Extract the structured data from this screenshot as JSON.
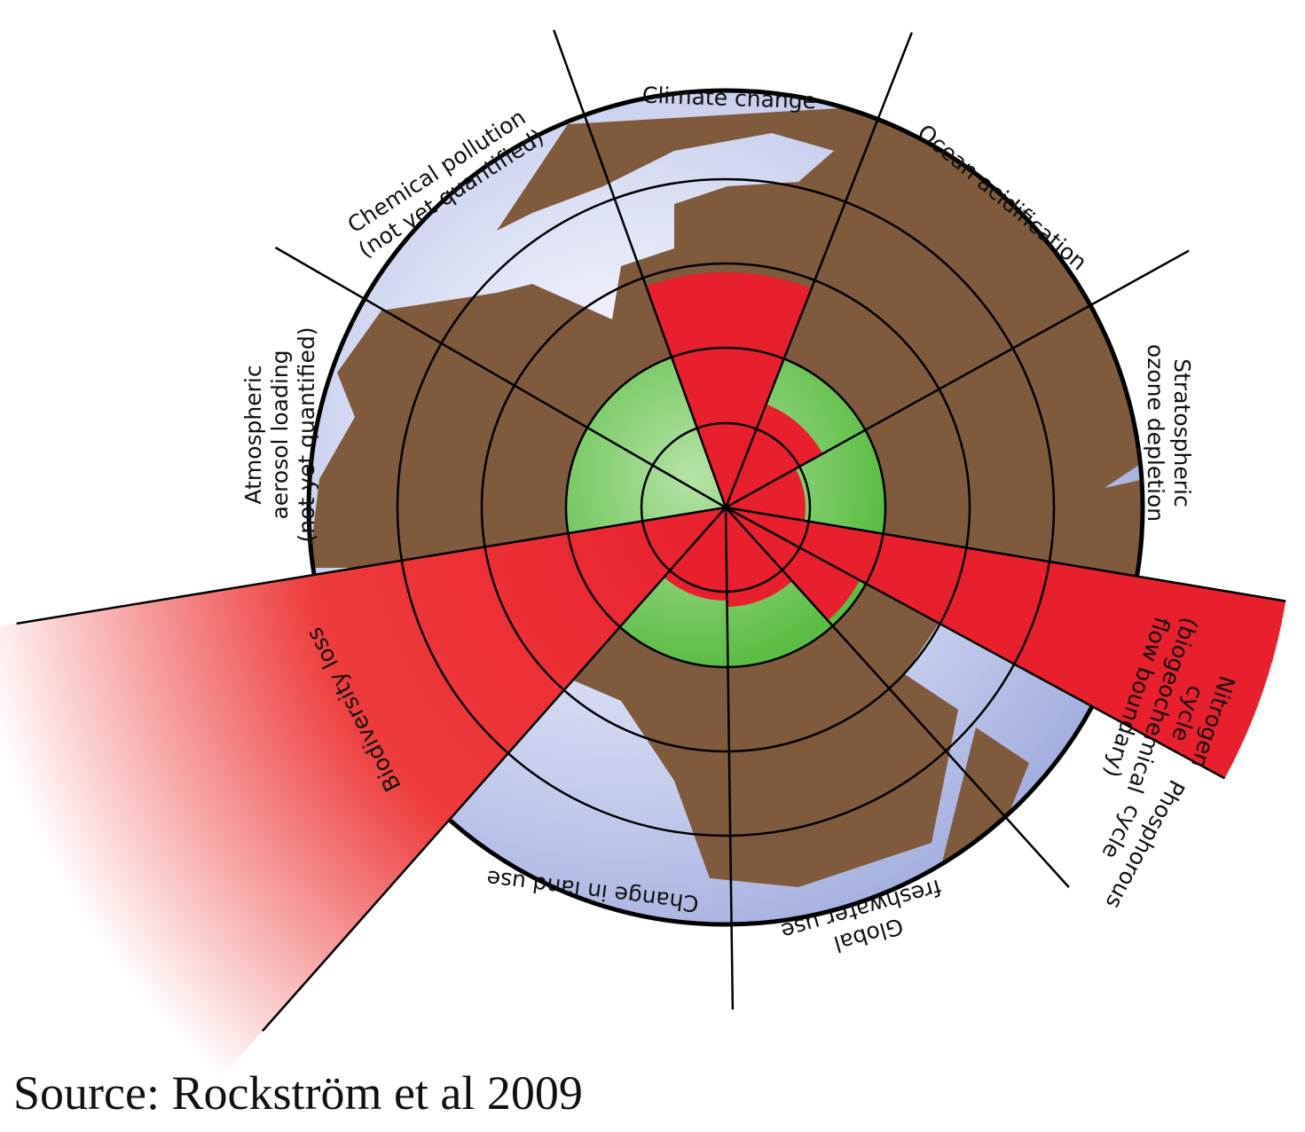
{
  "labels": {
    "climate": [
      "Climate change"
    ],
    "chemical": [
      "Chemical pollution",
      "(not yet quantified)"
    ],
    "ocean": [
      "Ocean acidification"
    ],
    "ozone": [
      "Stratospheric",
      "ozone depletion"
    ],
    "aerosol": [
      "Atmospheric",
      "aerosol loading",
      "(not yet quantified)"
    ],
    "nitrogen": [
      "Nitrogen",
      "cycle",
      "(biogeochemical",
      "flow boundary)"
    ],
    "phosphorus": [
      "Phosphorous",
      "cycle"
    ],
    "freshwater": [
      "Global",
      "freshwater use"
    ],
    "landuse": [
      "Change in land use"
    ],
    "biodiversity": [
      "Biodiversity loss"
    ]
  },
  "source": "Source: Rockström et al 2009"
}
